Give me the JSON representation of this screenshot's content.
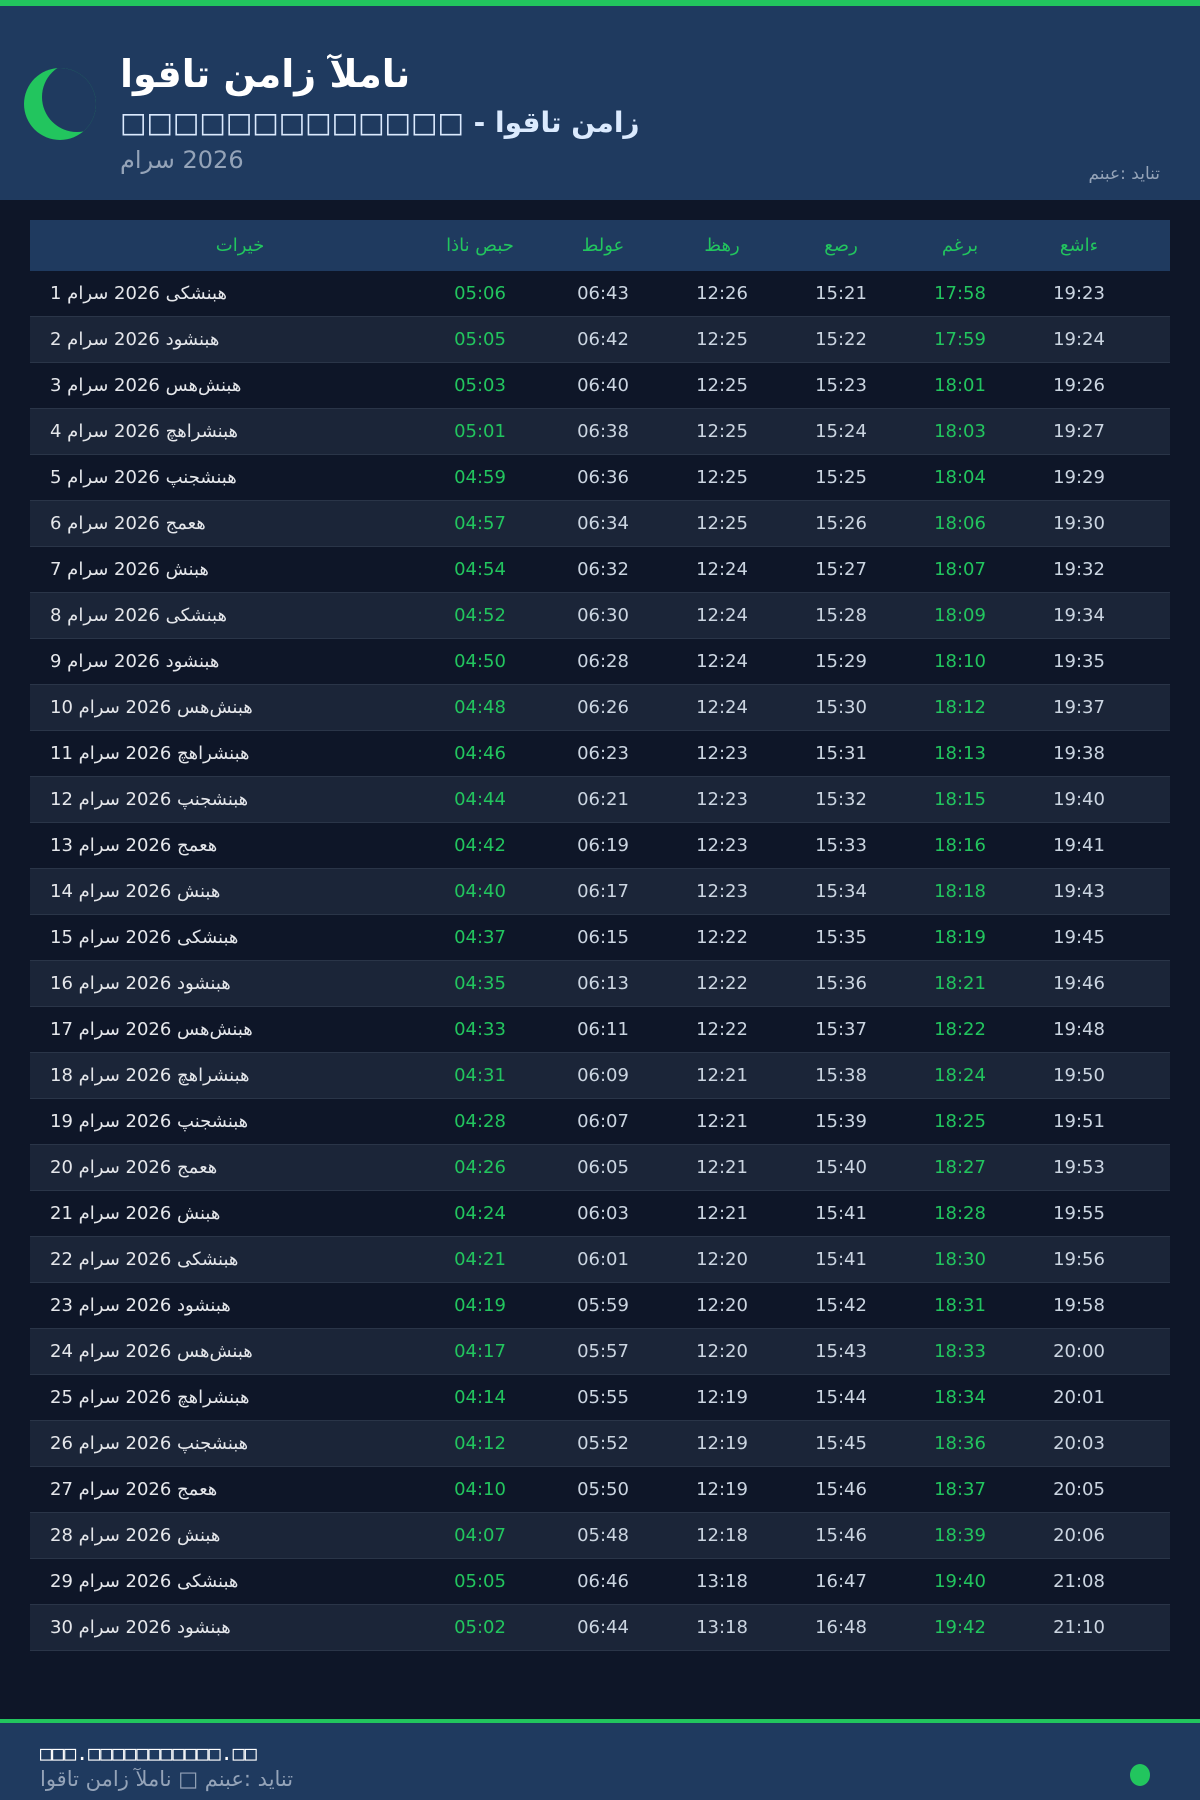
{
  "header": {
    "title": "اوقات نماز آلمان",
    "subtitle": "□□□□□□□□□□□□□ - اوقات نماز",
    "month": "مارس 2026",
    "source": "منبع: دیانت",
    "icon": "crescent-moon-icon"
  },
  "colors": {
    "accent": "#22c55e",
    "header_bg": "#1f3a5f",
    "page_bg": "#0e1628"
  },
  "table": {
    "columns": [
      "تاریخ",
      "اذان صبح",
      "طلوع",
      "ظهر",
      "عصر",
      "مغرب",
      "عشاء"
    ],
    "rows": [
      [
        "1 مارس 2026 یکشنبه",
        "05:06",
        "06:43",
        "12:26",
        "15:21",
        "17:58",
        "19:23"
      ],
      [
        "2 مارس 2026 دوشنبه",
        "05:05",
        "06:42",
        "12:25",
        "15:22",
        "17:59",
        "19:24"
      ],
      [
        "3 مارس 2026 سه‌شنبه",
        "05:03",
        "06:40",
        "12:25",
        "15:23",
        "18:01",
        "19:26"
      ],
      [
        "4 مارس 2026 چهارشنبه",
        "05:01",
        "06:38",
        "12:25",
        "15:24",
        "18:03",
        "19:27"
      ],
      [
        "5 مارس 2026 پنجشنبه",
        "04:59",
        "06:36",
        "12:25",
        "15:25",
        "18:04",
        "19:29"
      ],
      [
        "6 مارس 2026 جمعه",
        "04:57",
        "06:34",
        "12:25",
        "15:26",
        "18:06",
        "19:30"
      ],
      [
        "7 مارس 2026 شنبه",
        "04:54",
        "06:32",
        "12:24",
        "15:27",
        "18:07",
        "19:32"
      ],
      [
        "8 مارس 2026 یکشنبه",
        "04:52",
        "06:30",
        "12:24",
        "15:28",
        "18:09",
        "19:34"
      ],
      [
        "9 مارس 2026 دوشنبه",
        "04:50",
        "06:28",
        "12:24",
        "15:29",
        "18:10",
        "19:35"
      ],
      [
        "10 مارس 2026 سه‌شنبه",
        "04:48",
        "06:26",
        "12:24",
        "15:30",
        "18:12",
        "19:37"
      ],
      [
        "11 مارس 2026 چهارشنبه",
        "04:46",
        "06:23",
        "12:23",
        "15:31",
        "18:13",
        "19:38"
      ],
      [
        "12 مارس 2026 پنجشنبه",
        "04:44",
        "06:21",
        "12:23",
        "15:32",
        "18:15",
        "19:40"
      ],
      [
        "13 مارس 2026 جمعه",
        "04:42",
        "06:19",
        "12:23",
        "15:33",
        "18:16",
        "19:41"
      ],
      [
        "14 مارس 2026 شنبه",
        "04:40",
        "06:17",
        "12:23",
        "15:34",
        "18:18",
        "19:43"
      ],
      [
        "15 مارس 2026 یکشنبه",
        "04:37",
        "06:15",
        "12:22",
        "15:35",
        "18:19",
        "19:45"
      ],
      [
        "16 مارس 2026 دوشنبه",
        "04:35",
        "06:13",
        "12:22",
        "15:36",
        "18:21",
        "19:46"
      ],
      [
        "17 مارس 2026 سه‌شنبه",
        "04:33",
        "06:11",
        "12:22",
        "15:37",
        "18:22",
        "19:48"
      ],
      [
        "18 مارس 2026 چهارشنبه",
        "04:31",
        "06:09",
        "12:21",
        "15:38",
        "18:24",
        "19:50"
      ],
      [
        "19 مارس 2026 پنجشنبه",
        "04:28",
        "06:07",
        "12:21",
        "15:39",
        "18:25",
        "19:51"
      ],
      [
        "20 مارس 2026 جمعه",
        "04:26",
        "06:05",
        "12:21",
        "15:40",
        "18:27",
        "19:53"
      ],
      [
        "21 مارس 2026 شنبه",
        "04:24",
        "06:03",
        "12:21",
        "15:41",
        "18:28",
        "19:55"
      ],
      [
        "22 مارس 2026 یکشنبه",
        "04:21",
        "06:01",
        "12:20",
        "15:41",
        "18:30",
        "19:56"
      ],
      [
        "23 مارس 2026 دوشنبه",
        "04:19",
        "05:59",
        "12:20",
        "15:42",
        "18:31",
        "19:58"
      ],
      [
        "24 مارس 2026 سه‌شنبه",
        "04:17",
        "05:57",
        "12:20",
        "15:43",
        "18:33",
        "20:00"
      ],
      [
        "25 مارس 2026 چهارشنبه",
        "04:14",
        "05:55",
        "12:19",
        "15:44",
        "18:34",
        "20:01"
      ],
      [
        "26 مارس 2026 پنجشنبه",
        "04:12",
        "05:52",
        "12:19",
        "15:45",
        "18:36",
        "20:03"
      ],
      [
        "27 مارس 2026 جمعه",
        "04:10",
        "05:50",
        "12:19",
        "15:46",
        "18:37",
        "20:05"
      ],
      [
        "28 مارس 2026 شنبه",
        "04:07",
        "05:48",
        "12:18",
        "15:46",
        "18:39",
        "20:06"
      ],
      [
        "29 مارس 2026 یکشنبه",
        "05:05",
        "06:46",
        "13:18",
        "16:47",
        "19:40",
        "21:08"
      ],
      [
        "30 مارس 2026 دوشنبه",
        "05:02",
        "06:44",
        "13:18",
        "16:48",
        "19:42",
        "21:10"
      ]
    ]
  },
  "footer": {
    "site": "□□□.□□□□□□□□□□□.□□",
    "text": "اوقات نماز آلمان □ منبع: دیانت"
  }
}
